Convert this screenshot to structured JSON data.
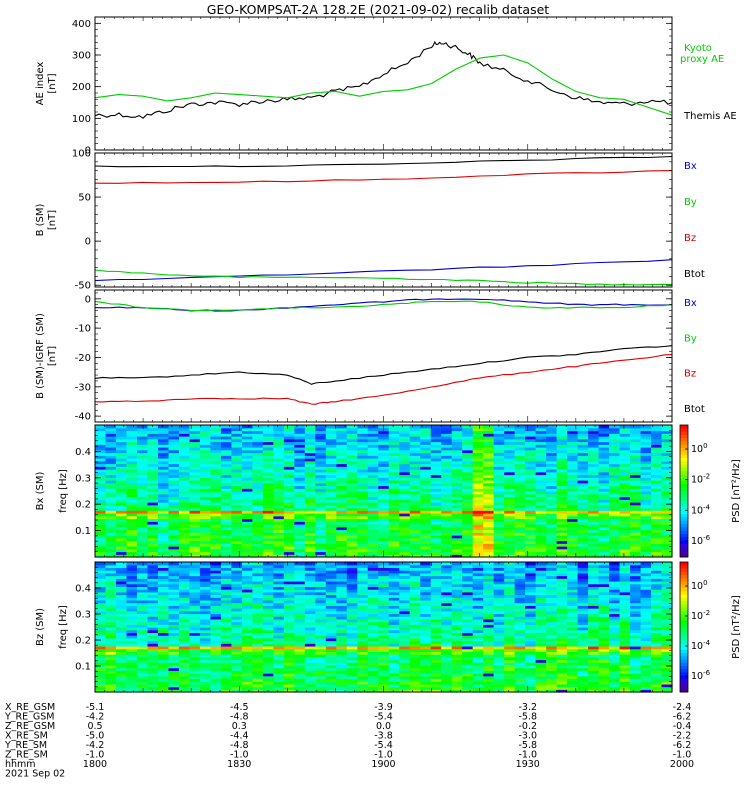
{
  "title": "GEO-KOMPSAT-2A 128.2E (2021-09-02) recalib dataset",
  "colors": {
    "black": "#000000",
    "red": "#dd0000",
    "green": "#00cc00",
    "blue": "#0000cc"
  },
  "chart_data": [
    {
      "type": "line",
      "panel": "ae",
      "ylabel": [
        "AE index",
        "[nT]"
      ],
      "ylim": [
        0,
        420
      ],
      "yticks": [
        0,
        100,
        200,
        300,
        400
      ],
      "x_unit": "UT hhmm",
      "series": [
        {
          "name": "Themis AE",
          "color": "#000000",
          "x": [
            1800,
            1805,
            1810,
            1815,
            1820,
            1825,
            1830,
            1835,
            1840,
            1845,
            1850,
            1855,
            1900,
            1905,
            1910,
            1912,
            1915,
            1918,
            1920,
            1925,
            1930,
            1935,
            1940,
            1945,
            1950,
            1955,
            2000
          ],
          "values": [
            110,
            112,
            105,
            125,
            145,
            150,
            145,
            155,
            160,
            165,
            185,
            200,
            240,
            275,
            330,
            340,
            325,
            300,
            275,
            250,
            220,
            190,
            165,
            150,
            145,
            155,
            150
          ]
        },
        {
          "name": "Kyoto proxy AE",
          "color": "#00cc00",
          "x": [
            1800,
            1805,
            1810,
            1815,
            1820,
            1825,
            1830,
            1835,
            1840,
            1845,
            1850,
            1855,
            1900,
            1905,
            1910,
            1915,
            1920,
            1925,
            1930,
            1935,
            1940,
            1945,
            1950,
            1955,
            2000
          ],
          "values": [
            165,
            175,
            170,
            155,
            165,
            180,
            175,
            170,
            165,
            180,
            185,
            170,
            185,
            190,
            210,
            255,
            290,
            300,
            275,
            225,
            185,
            165,
            160,
            135,
            110
          ]
        }
      ]
    },
    {
      "type": "line",
      "panel": "b_sm",
      "ylabel": [
        "B (SM)",
        "[nT]"
      ],
      "ylim": [
        -52,
        100
      ],
      "yticks": [
        -50,
        0,
        50,
        100
      ],
      "series": [
        {
          "name": "Bx",
          "color": "#0000cc",
          "x": [
            1800,
            1830,
            1900,
            1930,
            2000
          ],
          "values": [
            -45,
            -40,
            -34,
            -28,
            -21
          ]
        },
        {
          "name": "By",
          "color": "#00cc00",
          "x": [
            1800,
            1815,
            1830,
            1845,
            1900,
            1915,
            1930,
            1945,
            2000
          ],
          "values": [
            -33,
            -38,
            -41,
            -41,
            -42,
            -44,
            -47,
            -49,
            -49
          ]
        },
        {
          "name": "Bz",
          "color": "#dd0000",
          "x": [
            1800,
            1830,
            1900,
            1930,
            2000
          ],
          "values": [
            66,
            67,
            70,
            76,
            80
          ]
        },
        {
          "name": "Btot",
          "color": "#000000",
          "x": [
            1800,
            1830,
            1900,
            1930,
            2000
          ],
          "values": [
            85,
            85,
            87,
            92,
            96
          ]
        }
      ]
    },
    {
      "type": "line",
      "panel": "b_minus_igrf",
      "ylabel": [
        "B (SM)-IGRF (SM)",
        "[nT]"
      ],
      "ylim": [
        -42,
        3
      ],
      "yticks": [
        -40,
        -30,
        -20,
        -10,
        0
      ],
      "series": [
        {
          "name": "Bx",
          "color": "#0000cc",
          "x": [
            1800,
            1810,
            1820,
            1830,
            1840,
            1850,
            1900,
            1910,
            1920,
            1930,
            1940,
            1950,
            2000
          ],
          "values": [
            -3,
            -3,
            -4,
            -4,
            -3,
            -2,
            -1,
            0,
            0,
            -1,
            -2,
            -2,
            -2
          ]
        },
        {
          "name": "By",
          "color": "#00cc00",
          "x": [
            1800,
            1810,
            1820,
            1830,
            1840,
            1850,
            1900,
            1910,
            1920,
            1930,
            1940,
            1950,
            2000
          ],
          "values": [
            -1,
            -3,
            -4,
            -4,
            -3,
            -3,
            -2,
            -1,
            -1,
            -3,
            -3,
            -3,
            -2
          ]
        },
        {
          "name": "Bz",
          "color": "#dd0000",
          "x": [
            1800,
            1810,
            1820,
            1830,
            1840,
            1845,
            1850,
            1900,
            1910,
            1920,
            1930,
            1940,
            1950,
            2000
          ],
          "values": [
            -35,
            -35,
            -34,
            -34,
            -34,
            -36,
            -35,
            -33,
            -30,
            -27,
            -25,
            -23,
            -21,
            -19
          ]
        },
        {
          "name": "Btot",
          "color": "#000000",
          "x": [
            1800,
            1810,
            1820,
            1830,
            1840,
            1845,
            1850,
            1900,
            1910,
            1920,
            1930,
            1940,
            1950,
            2000
          ],
          "values": [
            -27,
            -27,
            -26,
            -25,
            -26,
            -29,
            -28,
            -26,
            -24,
            -22,
            -20,
            -19,
            -17,
            -16
          ]
        }
      ]
    },
    {
      "type": "heatmap",
      "panel": "bx_spec",
      "ylabel": [
        "Bx (SM)",
        "freq [Hz]"
      ],
      "ylim": [
        0,
        0.5
      ],
      "yticks": [
        0.1,
        0.2,
        0.3,
        0.4
      ],
      "colorbar": {
        "label": "PSD [nT²/Hz]",
        "ticks": [
          "10^0",
          "10^-2",
          "10^-4",
          "10^-6"
        ]
      }
    },
    {
      "type": "heatmap",
      "panel": "bz_spec",
      "ylabel": [
        "Bz (SM)",
        "freq [Hz]"
      ],
      "ylim": [
        0,
        0.5
      ],
      "yticks": [
        0.1,
        0.2,
        0.3,
        0.4
      ],
      "colorbar": {
        "label": "PSD [nT²/Hz]",
        "ticks": [
          "10^0",
          "10^-2",
          "10^-4",
          "10^-6"
        ]
      }
    }
  ],
  "xaxis": {
    "start": 1800,
    "end": 2000,
    "ticks": [
      1800,
      1830,
      1900,
      1930,
      2000
    ]
  },
  "ephemeris": [
    {
      "label": "X_RE_GSM",
      "values": [
        "-5.1",
        "-4.5",
        "-3.9",
        "-3.2",
        "-2.4"
      ]
    },
    {
      "label": "Y_RE_GSM",
      "values": [
        "-4.2",
        "-4.8",
        "-5.4",
        "-5.8",
        "-6.2"
      ]
    },
    {
      "label": "Z_RE_GSM",
      "values": [
        "0.5",
        "0.3",
        "0.0",
        "-0.2",
        "-0.4"
      ]
    },
    {
      "label": "X_RE_SM",
      "values": [
        "-5.0",
        "-4.4",
        "-3.8",
        "-3.0",
        "-2.2"
      ]
    },
    {
      "label": "Y_RE_SM",
      "values": [
        "-4.2",
        "-4.8",
        "-5.4",
        "-5.8",
        "-6.2"
      ]
    },
    {
      "label": "Z_RE_SM",
      "values": [
        "-1.0",
        "-1.0",
        "-1.0",
        "-1.0",
        "-1.0"
      ]
    },
    {
      "label": "hhmm",
      "values": [
        "1800",
        "1830",
        "1900",
        "1930",
        "2000"
      ]
    }
  ],
  "date_label": "2021 Sep 02"
}
